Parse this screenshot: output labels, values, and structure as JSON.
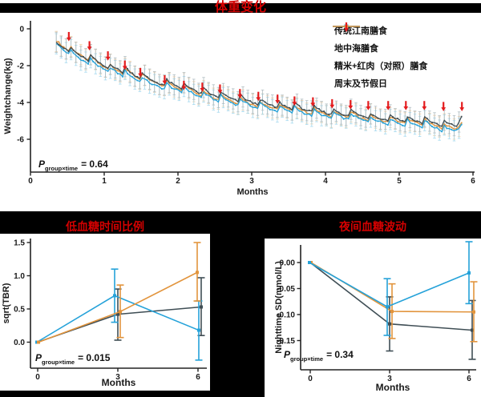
{
  "chart_data": [
    {
      "type": "line",
      "title": "体重变化",
      "xlabel": "Months",
      "ylabel": "Weightchange(kg)",
      "xticks": [
        0,
        1,
        2,
        3,
        4,
        5,
        6
      ],
      "xtick_labels": [
        "0",
        "1",
        "2",
        "3",
        "4",
        "5",
        "6"
      ],
      "ytick_values": [
        0,
        -2,
        -4,
        -6
      ],
      "ytick_labels": [
        "0",
        "-2",
        "-4",
        "-6"
      ],
      "xlim": [
        0,
        6.05
      ],
      "ylim": [
        -7.3,
        0.4
      ],
      "grid": false,
      "legend_position": "top-right",
      "p": {
        "symbol": "P",
        "sub": "group×time",
        "value": "= 0.64"
      },
      "legend": [
        {
          "label": "传统江南膳食",
          "color": "#3F4E55",
          "type": "line"
        },
        {
          "label": "地中海膳食",
          "color": "#25A2D9",
          "type": "line"
        },
        {
          "label": "精米+红肉（对照）膳食",
          "color": "#E2943C",
          "type": "line"
        },
        {
          "label": "周末及节假日",
          "color": "#E41B1D",
          "type": "arrow"
        }
      ],
      "error_halfwidth": 0.55,
      "sample_start": 0.35,
      "sample_end": 5.85,
      "sample_step": 0.0333,
      "weekend_sawtooth": {
        "amp_up": 0.32,
        "amp_down": -0.1,
        "jitter": 0.12
      },
      "weekend_months": [
        0.52,
        0.8,
        1.05,
        1.28,
        1.49,
        1.82,
        2.08,
        2.33,
        2.57,
        2.84,
        3.09,
        3.35,
        3.58,
        3.83,
        4.09,
        4.34,
        4.58,
        4.85,
        5.09,
        5.34,
        5.6,
        5.85
      ],
      "weekend_arrow_tips": [
        -0.65,
        -1.15,
        -1.7,
        -2.2,
        -2.6,
        -3.0,
        -3.3,
        -3.4,
        -3.5,
        -3.75,
        -3.9,
        -4.05,
        -4.15,
        -4.2,
        -4.3,
        -4.35,
        -4.4,
        -4.4,
        -4.4,
        -4.4,
        -4.45,
        -4.45
      ],
      "series": [
        {
          "name": "精米+红肉（对照）膳食",
          "color": "#E2943C",
          "light_color": "#F3CFA3",
          "trend": [
            [
              0.35,
              -0.8
            ],
            [
              0.6,
              -1.3
            ],
            [
              1,
              -2.05
            ],
            [
              1.5,
              -2.7
            ],
            [
              2,
              -3.2
            ],
            [
              2.5,
              -3.75
            ],
            [
              3,
              -4.1
            ],
            [
              3.5,
              -4.4
            ],
            [
              4,
              -4.65
            ],
            [
              4.5,
              -4.85
            ],
            [
              5,
              -5.05
            ],
            [
              5.4,
              -5.2
            ],
            [
              5.65,
              -5.45
            ],
            [
              5.78,
              -5.4
            ],
            [
              5.85,
              -5.0
            ]
          ]
        },
        {
          "name": "地中海膳食",
          "color": "#25A2D9",
          "light_color": "#A3D8EE",
          "trend": [
            [
              0.35,
              -0.95
            ],
            [
              0.6,
              -1.5
            ],
            [
              1,
              -2.2
            ],
            [
              1.5,
              -2.85
            ],
            [
              2,
              -3.35
            ],
            [
              2.5,
              -3.85
            ],
            [
              3,
              -4.2
            ],
            [
              3.5,
              -4.5
            ],
            [
              4,
              -4.75
            ],
            [
              4.5,
              -4.95
            ],
            [
              5,
              -5.15
            ],
            [
              5.4,
              -5.3
            ],
            [
              5.65,
              -5.55
            ],
            [
              5.78,
              -5.5
            ],
            [
              5.85,
              -5.1
            ]
          ]
        },
        {
          "name": "传统江南膳食",
          "color": "#3F4E55",
          "light_color": "#AEBBC0",
          "trend": [
            [
              0.35,
              -0.85
            ],
            [
              0.6,
              -1.35
            ],
            [
              1,
              -2.0
            ],
            [
              1.5,
              -2.65
            ],
            [
              2,
              -3.15
            ],
            [
              2.5,
              -3.65
            ],
            [
              3,
              -4.0
            ],
            [
              3.5,
              -4.3
            ],
            [
              4,
              -4.55
            ],
            [
              4.5,
              -4.75
            ],
            [
              5,
              -4.95
            ],
            [
              5.4,
              -5.1
            ],
            [
              5.65,
              -5.3
            ],
            [
              5.78,
              -5.25
            ],
            [
              5.85,
              -4.7
            ]
          ]
        }
      ]
    },
    {
      "type": "pointrange",
      "title": "低血糖时间比例",
      "xlabel": "Months",
      "ylabel": "sqrt(TBR)",
      "x": [
        0,
        3,
        6
      ],
      "xtick_labels": [
        "0",
        "3",
        "6"
      ],
      "ytick_values": [
        0.0,
        0.5,
        1.0,
        1.5
      ],
      "ytick_labels": [
        "0.0",
        "0.5",
        "1.0",
        "1.5"
      ],
      "ylim": [
        -0.39,
        1.56
      ],
      "grid": false,
      "p": {
        "symbol": "P",
        "sub": "group×time",
        "value": "= 0.015"
      },
      "series": [
        {
          "name": "传统江南膳食",
          "color": "#3F4E55",
          "values": [
            0.0,
            0.42,
            0.53
          ],
          "lo": [
            null,
            0.03,
            0.1
          ],
          "hi": [
            null,
            0.8,
            0.97
          ],
          "offsets": [
            0,
            0,
            4
          ]
        },
        {
          "name": "地中海膳食",
          "color": "#25A2D9",
          "values": [
            0.0,
            0.7,
            0.18
          ],
          "lo": [
            null,
            0.3,
            -0.27
          ],
          "hi": [
            null,
            1.1,
            0.62
          ],
          "offsets": [
            -1,
            -4,
            1
          ]
        },
        {
          "name": "精米+红肉（对照）膳食",
          "color": "#E2943C",
          "values": [
            0.0,
            0.46,
            1.05
          ],
          "lo": [
            null,
            0.07,
            0.62
          ],
          "hi": [
            null,
            0.86,
            1.5
          ],
          "offsets": [
            1,
            3,
            -1
          ]
        }
      ]
    },
    {
      "type": "pointrange",
      "title": "夜间血糖波动",
      "xlabel": "Months",
      "ylabel": "Nighttime SD(mmol/L)",
      "x": [
        0,
        3,
        6
      ],
      "xtick_labels": [
        "0",
        "3",
        "6"
      ],
      "ytick_values": [
        0.0,
        -0.05,
        -0.1,
        -0.15
      ],
      "ytick_labels": [
        "0.00",
        "-0.05",
        "-0.10",
        "-0.15"
      ],
      "ylim": [
        -0.206,
        0.046
      ],
      "grid": false,
      "p": {
        "symbol": "P",
        "sub": "group×time",
        "value": "= 0.34"
      },
      "series": [
        {
          "name": "传统江南膳食",
          "color": "#3F4E55",
          "values": [
            0.0,
            -0.118,
            -0.13
          ],
          "lo": [
            null,
            -0.17,
            -0.186
          ],
          "hi": [
            null,
            -0.066,
            -0.073
          ],
          "offsets": [
            0,
            0,
            4
          ]
        },
        {
          "name": "精米+红肉（对照）膳食",
          "color": "#E2943C",
          "values": [
            0.0,
            -0.094,
            -0.095
          ],
          "lo": [
            null,
            -0.146,
            -0.152
          ],
          "hi": [
            null,
            -0.041,
            -0.037
          ],
          "offsets": [
            1,
            3,
            6
          ]
        },
        {
          "name": "地中海膳食",
          "color": "#25A2D9",
          "values": [
            0.0,
            -0.085,
            -0.02
          ],
          "lo": [
            null,
            -0.14,
            -0.079
          ],
          "hi": [
            null,
            -0.031,
            0.04
          ],
          "offsets": [
            -1,
            -3,
            0
          ]
        }
      ]
    }
  ]
}
